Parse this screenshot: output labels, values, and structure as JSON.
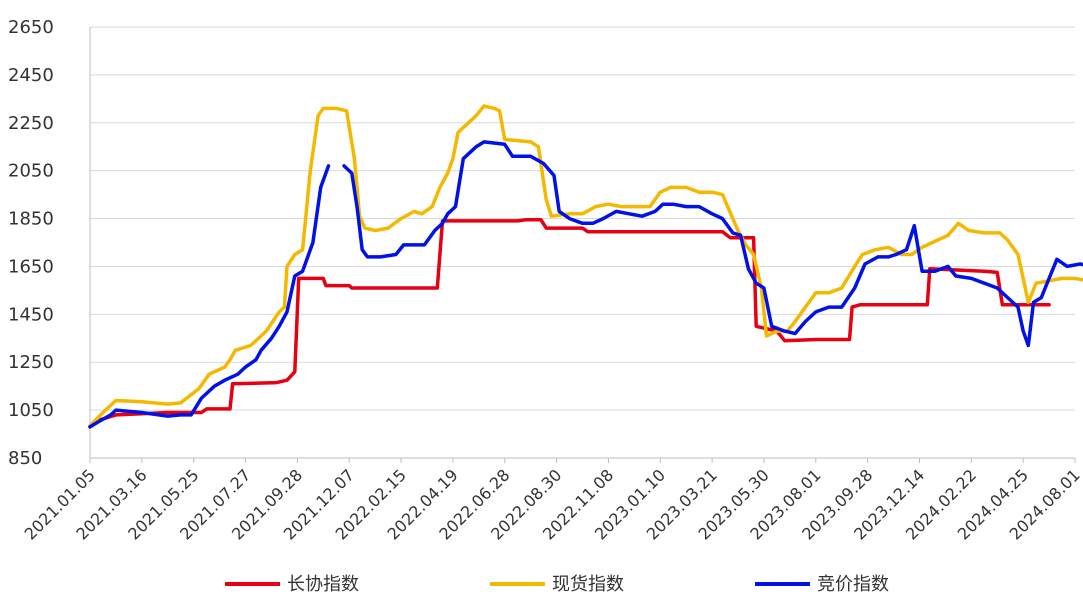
{
  "chart_data": {
    "type": "line",
    "title": "",
    "xlabel": "",
    "ylabel": "",
    "ylim": [
      850,
      2650
    ],
    "y_ticks": [
      850,
      1050,
      1250,
      1450,
      1650,
      1850,
      2050,
      2250,
      2450,
      2650
    ],
    "x_ticks": [
      "2021.01.05",
      "2021.03.16",
      "2021.05.25",
      "2021.07.27",
      "2021.09.28",
      "2021.12.07",
      "2022.02.15",
      "2022.04.19",
      "2022.06.28",
      "2022.08.30",
      "2022.11.08",
      "2023.01.10",
      "2023.03.21",
      "2023.05.30",
      "2023.08.01",
      "2023.09.28",
      "2023.12.14",
      "2024.02.22",
      "2024.04.25",
      "2024.08.01"
    ],
    "grid": true,
    "legend_position": "bottom",
    "series": [
      {
        "name": "长协指数",
        "color": "#e60012",
        "points": [
          [
            0,
            980
          ],
          [
            0.25,
            1005
          ],
          [
            1,
            1030
          ],
          [
            2,
            1035
          ],
          [
            3,
            1040
          ],
          [
            4.3,
            1040
          ],
          [
            4.5,
            1055
          ],
          [
            5.4,
            1055
          ],
          [
            5.5,
            1160
          ],
          [
            7.2,
            1165
          ],
          [
            7.6,
            1175
          ],
          [
            7.9,
            1210
          ],
          [
            8.05,
            1600
          ],
          [
            9,
            1600
          ],
          [
            9.1,
            1570
          ],
          [
            10,
            1570
          ],
          [
            10.1,
            1560
          ],
          [
            13.4,
            1560
          ],
          [
            13.6,
            1840
          ],
          [
            16.5,
            1840
          ],
          [
            16.8,
            1845
          ],
          [
            17.4,
            1845
          ],
          [
            17.6,
            1810
          ],
          [
            19,
            1810
          ],
          [
            19.2,
            1795
          ],
          [
            24.4,
            1795
          ],
          [
            24.7,
            1770
          ],
          [
            25.6,
            1770
          ],
          [
            25.7,
            1400
          ],
          [
            26.5,
            1380
          ],
          [
            26.8,
            1340
          ],
          [
            28,
            1345
          ],
          [
            29.3,
            1345
          ],
          [
            29.4,
            1480
          ],
          [
            29.7,
            1490
          ],
          [
            32.3,
            1490
          ],
          [
            32.4,
            1640
          ],
          [
            34.5,
            1630
          ],
          [
            35,
            1625
          ],
          [
            35.2,
            1490
          ],
          [
            37,
            1490
          ]
        ]
      },
      {
        "name": "现货指数",
        "color": "#f5b800",
        "points": [
          [
            0,
            985
          ],
          [
            0.5,
            1040
          ],
          [
            1,
            1090
          ],
          [
            2,
            1085
          ],
          [
            3,
            1075
          ],
          [
            3.5,
            1080
          ],
          [
            4.2,
            1140
          ],
          [
            4.6,
            1200
          ],
          [
            5.2,
            1230
          ],
          [
            5.4,
            1260
          ],
          [
            5.6,
            1300
          ],
          [
            6.2,
            1320
          ],
          [
            6.8,
            1380
          ],
          [
            7.3,
            1460
          ],
          [
            7.5,
            1480
          ],
          [
            7.6,
            1650
          ],
          [
            7.9,
            1700
          ],
          [
            8.2,
            1720
          ],
          [
            8.5,
            2050
          ],
          [
            8.8,
            2280
          ],
          [
            9,
            2310
          ],
          [
            9.5,
            2310
          ],
          [
            9.9,
            2300
          ],
          [
            10.2,
            2100
          ],
          [
            10.4,
            1860
          ],
          [
            10.6,
            1810
          ],
          [
            11,
            1800
          ],
          [
            11.5,
            1810
          ],
          [
            12,
            1850
          ],
          [
            12.5,
            1880
          ],
          [
            12.8,
            1870
          ],
          [
            13.2,
            1900
          ],
          [
            13.5,
            1980
          ],
          [
            13.8,
            2040
          ],
          [
            14,
            2100
          ],
          [
            14.2,
            2210
          ],
          [
            14.6,
            2250
          ],
          [
            14.9,
            2280
          ],
          [
            15.2,
            2320
          ],
          [
            15.6,
            2310
          ],
          [
            15.8,
            2300
          ],
          [
            16,
            2180
          ],
          [
            17,
            2170
          ],
          [
            17.3,
            2150
          ],
          [
            17.6,
            1930
          ],
          [
            17.8,
            1860
          ],
          [
            18.5,
            1870
          ],
          [
            19,
            1870
          ],
          [
            19.5,
            1900
          ],
          [
            20,
            1910
          ],
          [
            20.5,
            1900
          ],
          [
            21,
            1900
          ],
          [
            21.6,
            1900
          ],
          [
            22,
            1960
          ],
          [
            22.4,
            1980
          ],
          [
            23,
            1980
          ],
          [
            23.5,
            1960
          ],
          [
            24,
            1960
          ],
          [
            24.4,
            1950
          ],
          [
            24.8,
            1850
          ],
          [
            25,
            1800
          ],
          [
            25.3,
            1740
          ],
          [
            25.6,
            1700
          ],
          [
            25.9,
            1560
          ],
          [
            26.1,
            1360
          ],
          [
            26.5,
            1380
          ],
          [
            26.9,
            1380
          ],
          [
            27.2,
            1420
          ],
          [
            27.6,
            1480
          ],
          [
            28,
            1540
          ],
          [
            28.5,
            1540
          ],
          [
            29,
            1560
          ],
          [
            29.5,
            1650
          ],
          [
            29.8,
            1700
          ],
          [
            30.3,
            1720
          ],
          [
            30.8,
            1730
          ],
          [
            31.3,
            1700
          ],
          [
            31.7,
            1700
          ],
          [
            32.1,
            1730
          ],
          [
            32.5,
            1750
          ],
          [
            33.1,
            1780
          ],
          [
            33.5,
            1830
          ],
          [
            33.9,
            1800
          ],
          [
            34.5,
            1790
          ],
          [
            35.1,
            1790
          ],
          [
            35.4,
            1760
          ],
          [
            35.8,
            1700
          ],
          [
            36,
            1600
          ],
          [
            36.2,
            1500
          ],
          [
            36.5,
            1580
          ],
          [
            37,
            1590
          ],
          [
            37.5,
            1600
          ],
          [
            38,
            1600
          ],
          [
            38.5,
            1590
          ],
          [
            38.8,
            1600
          ],
          [
            39,
            1580
          ]
        ]
      },
      {
        "name": "竞价指数",
        "color": "#0012e6",
        "points": [
          [
            0,
            980
          ],
          [
            0.3,
            1000
          ],
          [
            0.8,
            1030
          ],
          [
            1,
            1050
          ],
          [
            2,
            1040
          ],
          [
            3,
            1025
          ],
          [
            3.5,
            1030
          ],
          [
            3.9,
            1030
          ],
          [
            4.3,
            1100
          ],
          [
            4.8,
            1150
          ],
          [
            5.2,
            1175
          ],
          [
            5.7,
            1200
          ],
          [
            6,
            1230
          ],
          [
            6.4,
            1260
          ],
          [
            6.6,
            1300
          ],
          [
            7,
            1350
          ],
          [
            7.3,
            1400
          ],
          [
            7.6,
            1460
          ],
          [
            7.9,
            1610
          ],
          [
            8.2,
            1630
          ],
          [
            8.6,
            1750
          ],
          [
            8.9,
            1980
          ],
          [
            9.2,
            2070
          ],
          [
            null,
            null
          ],
          [
            9.8,
            2070
          ],
          [
            10.1,
            2040
          ],
          [
            10.3,
            1900
          ],
          [
            10.5,
            1720
          ],
          [
            10.7,
            1690
          ],
          [
            11.2,
            1690
          ],
          [
            11.8,
            1700
          ],
          [
            12.1,
            1740
          ],
          [
            12.9,
            1740
          ],
          [
            13.3,
            1800
          ],
          [
            13.6,
            1830
          ],
          [
            13.8,
            1870
          ],
          [
            14.1,
            1900
          ],
          [
            14.4,
            2100
          ],
          [
            14.9,
            2150
          ],
          [
            15.2,
            2170
          ],
          [
            16,
            2160
          ],
          [
            16.3,
            2110
          ],
          [
            17,
            2110
          ],
          [
            17.5,
            2080
          ],
          [
            17.9,
            2030
          ],
          [
            18.1,
            1880
          ],
          [
            18.5,
            1850
          ],
          [
            19,
            1830
          ],
          [
            19.4,
            1830
          ],
          [
            19.8,
            1850
          ],
          [
            20.3,
            1880
          ],
          [
            20.8,
            1870
          ],
          [
            21.3,
            1860
          ],
          [
            21.8,
            1880
          ],
          [
            22.1,
            1910
          ],
          [
            22.5,
            1910
          ],
          [
            23,
            1900
          ],
          [
            23.5,
            1900
          ],
          [
            24,
            1870
          ],
          [
            24.4,
            1850
          ],
          [
            24.8,
            1790
          ],
          [
            25.1,
            1780
          ],
          [
            25.4,
            1640
          ],
          [
            25.7,
            1580
          ],
          [
            26,
            1560
          ],
          [
            26.3,
            1400
          ],
          [
            26.8,
            1380
          ],
          [
            27.2,
            1370
          ],
          [
            27.6,
            1420
          ],
          [
            28,
            1460
          ],
          [
            28.5,
            1480
          ],
          [
            29,
            1480
          ],
          [
            29.5,
            1560
          ],
          [
            29.9,
            1660
          ],
          [
            30.4,
            1690
          ],
          [
            30.8,
            1690
          ],
          [
            31.1,
            1700
          ],
          [
            31.5,
            1720
          ],
          [
            31.8,
            1820
          ],
          [
            32.1,
            1630
          ],
          [
            32.6,
            1630
          ],
          [
            33.1,
            1650
          ],
          [
            33.4,
            1610
          ],
          [
            34,
            1600
          ],
          [
            34.5,
            1580
          ],
          [
            35,
            1560
          ],
          [
            35.4,
            1520
          ],
          [
            35.8,
            1480
          ],
          [
            36,
            1380
          ],
          [
            36.2,
            1320
          ],
          [
            36.4,
            1500
          ],
          [
            36.7,
            1520
          ],
          [
            37,
            1600
          ],
          [
            37.3,
            1680
          ],
          [
            37.7,
            1650
          ],
          [
            38.2,
            1660
          ],
          [
            38.6,
            1650
          ],
          [
            38.9,
            1640
          ],
          [
            39,
            1610
          ]
        ]
      }
    ]
  }
}
